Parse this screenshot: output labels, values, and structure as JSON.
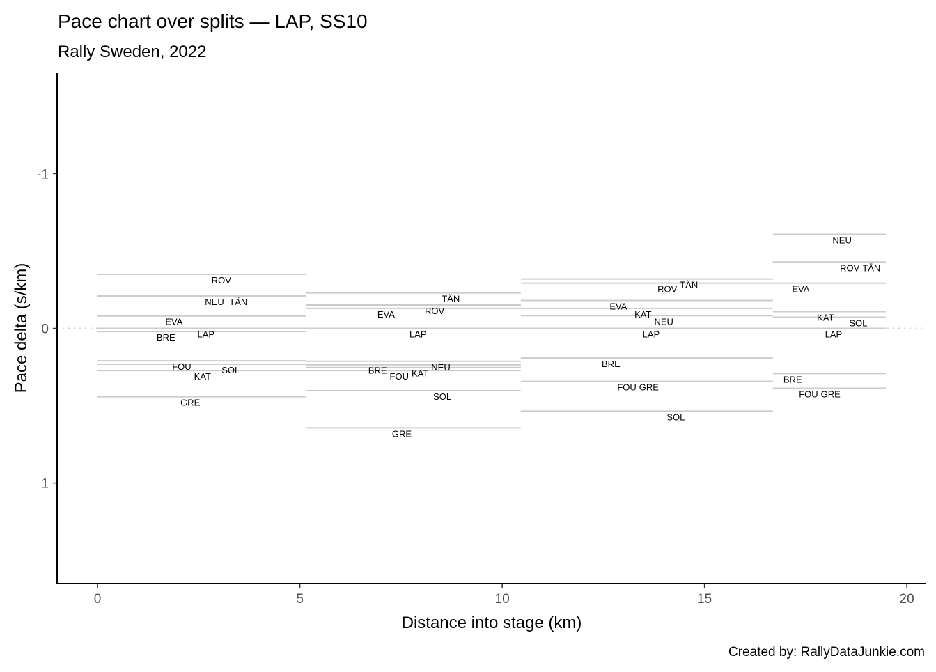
{
  "chart_data": {
    "type": "line",
    "title": "Pace chart over splits — LAP, SS10",
    "subtitle": "Rally Sweden, 2022",
    "xlabel": "Distance into stage (km)",
    "ylabel": "Pace delta (s/km)",
    "caption": "Created by: RallyDataJunkie.com",
    "xlim": [
      -1.0,
      20.48
    ],
    "ylim": [
      -1.65,
      1.65
    ],
    "y_reversed": true,
    "xticks": [
      0,
      5,
      10,
      15,
      20
    ],
    "yticks": [
      -1,
      0,
      1
    ],
    "reference_line": 0,
    "splits": [
      {
        "start": 0,
        "end": 5.16,
        "drivers": [
          {
            "code": "ROV",
            "delta": -0.349,
            "label_x": 3.06
          },
          {
            "code": "NEU",
            "delta": -0.21,
            "label_x": 2.89
          },
          {
            "code": "TÄN",
            "delta": -0.21,
            "label_x": 3.48
          },
          {
            "code": "EVA",
            "delta": -0.08,
            "label_x": 1.89
          },
          {
            "code": "LAP",
            "delta": 0,
            "label_x": 2.68
          },
          {
            "code": "BRE",
            "delta": 0.021,
            "label_x": 1.69
          },
          {
            "code": "FOU",
            "delta": 0.21,
            "label_x": 2.08
          },
          {
            "code": "SOL",
            "delta": 0.232,
            "label_x": 3.29
          },
          {
            "code": "KAT",
            "delta": 0.273,
            "label_x": 2.5
          },
          {
            "code": "GRE",
            "delta": 0.442,
            "label_x": 2.29
          }
        ]
      },
      {
        "start": 5.16,
        "end": 10.46,
        "drivers": [
          {
            "code": "TÄN",
            "delta": -0.229,
            "label_x": 8.73
          },
          {
            "code": "ROV",
            "delta": -0.151,
            "label_x": 8.33
          },
          {
            "code": "EVA",
            "delta": -0.129,
            "label_x": 7.13
          },
          {
            "code": "LAP",
            "delta": 0,
            "label_x": 7.92
          },
          {
            "code": "NEU",
            "delta": 0.213,
            "label_x": 8.12
          },
          {
            "code": "BRE",
            "delta": 0.235,
            "label_x": 6.92
          },
          {
            "code": "KAT",
            "delta": 0.253,
            "label_x": 7.73
          },
          {
            "code": "FOU",
            "delta": 0.273,
            "label_x": 7.31
          },
          {
            "code": "SOL",
            "delta": 0.403,
            "label_x": 8.52
          },
          {
            "code": "GRE",
            "delta": 0.643,
            "label_x": 7.52
          }
        ]
      },
      {
        "start": 10.46,
        "end": 16.69,
        "drivers": [
          {
            "code": "TÄN",
            "delta": -0.319,
            "label_x": 14.49
          },
          {
            "code": "ROV",
            "delta": -0.292,
            "label_x": 14.08
          },
          {
            "code": "EVA",
            "delta": -0.18,
            "label_x": 12.87
          },
          {
            "code": "KAT",
            "delta": -0.129,
            "label_x": 13.48
          },
          {
            "code": "NEU",
            "delta": -0.082,
            "label_x": 13.87
          },
          {
            "code": "LAP",
            "delta": 0,
            "label_x": 13.68
          },
          {
            "code": "BRE",
            "delta": 0.192,
            "label_x": 12.69
          },
          {
            "code": "FOU",
            "delta": 0.343,
            "label_x": 13.08
          },
          {
            "code": "GRE",
            "delta": 0.343,
            "label_x": 13.29
          },
          {
            "code": "SOL",
            "delta": 0.535,
            "label_x": 14.29
          }
        ]
      },
      {
        "start": 16.69,
        "end": 19.48,
        "drivers": [
          {
            "code": "NEU",
            "delta": -0.608,
            "label_x": 18.4
          },
          {
            "code": "ROV",
            "delta": -0.428,
            "label_x": 18.59
          },
          {
            "code": "TÄN",
            "delta": -0.428,
            "label_x": 18.98
          },
          {
            "code": "EVA",
            "delta": -0.292,
            "label_x": 17.38
          },
          {
            "code": "KAT",
            "delta": -0.108,
            "label_x": 17.99
          },
          {
            "code": "SOL",
            "delta": -0.072,
            "label_x": 18.8
          },
          {
            "code": "LAP",
            "delta": 0,
            "label_x": 18.19
          },
          {
            "code": "BRE",
            "delta": 0.292,
            "label_x": 17.18
          },
          {
            "code": "FOU",
            "delta": 0.388,
            "label_x": 17.57
          },
          {
            "code": "GRE",
            "delta": 0.388,
            "label_x": 17.78
          }
        ]
      }
    ],
    "colors": {
      "segment": "#cccccc",
      "reference": "#cccccc",
      "axis": "#000000",
      "text": "#000000",
      "tick_text": "#4d4d4d"
    }
  }
}
